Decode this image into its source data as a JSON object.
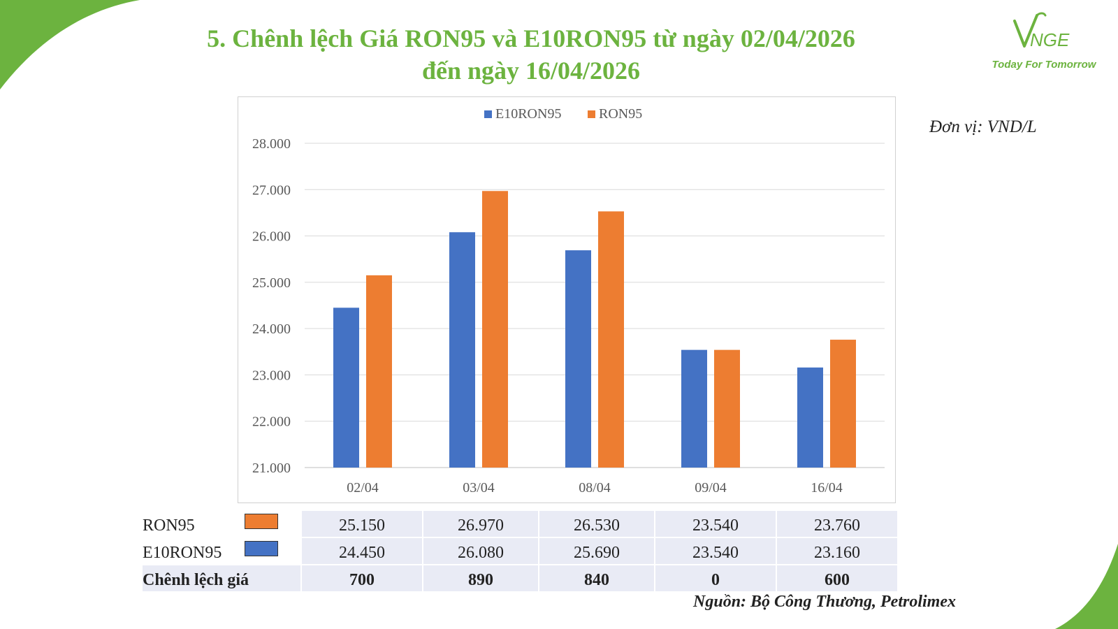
{
  "header": {
    "title_line1": "5. Chênh lệch Giá RON95 và E10RON95 từ ngày 02/04/2026",
    "title_line2": "đến ngày 16/04/2026"
  },
  "logo": {
    "brand": "VNGE",
    "tagline": "Today For Tomorrow",
    "color": "#6cb33f"
  },
  "unit_label": "Đơn vị: VND/L",
  "colors": {
    "e10ron95": "#4472c4",
    "ron95": "#ed7d31",
    "accent_green": "#6cb33f",
    "table_fill": "#e9ebf5"
  },
  "chart_data": {
    "type": "bar",
    "categories": [
      "02/04",
      "03/04",
      "08/04",
      "09/04",
      "16/04"
    ],
    "series": [
      {
        "name": "E10RON95",
        "values": [
          24450,
          26080,
          25690,
          23540,
          23160
        ],
        "color": "#4472c4"
      },
      {
        "name": "RON95",
        "values": [
          25150,
          26970,
          26530,
          23540,
          23760
        ],
        "color": "#ed7d31"
      }
    ],
    "yticks": [
      "21.000",
      "22.000",
      "23.000",
      "24.000",
      "25.000",
      "26.000",
      "27.000",
      "28.000"
    ],
    "ylim": [
      21000,
      28000
    ],
    "legend_position": "top-center",
    "grid": true
  },
  "table": {
    "rows": [
      {
        "label": "RON95",
        "color": "#ed7d31",
        "values": [
          "25.150",
          "26.970",
          "26.530",
          "23.540",
          "23.760"
        ]
      },
      {
        "label": "E10RON95",
        "color": "#4472c4",
        "values": [
          "24.450",
          "26.080",
          "25.690",
          "23.540",
          "23.160"
        ]
      },
      {
        "label": "Chênh lệch giá",
        "values": [
          "700",
          "890",
          "840",
          "0",
          "600"
        ]
      }
    ]
  },
  "source": "Nguồn: Bộ Công Thương, Petrolimex"
}
